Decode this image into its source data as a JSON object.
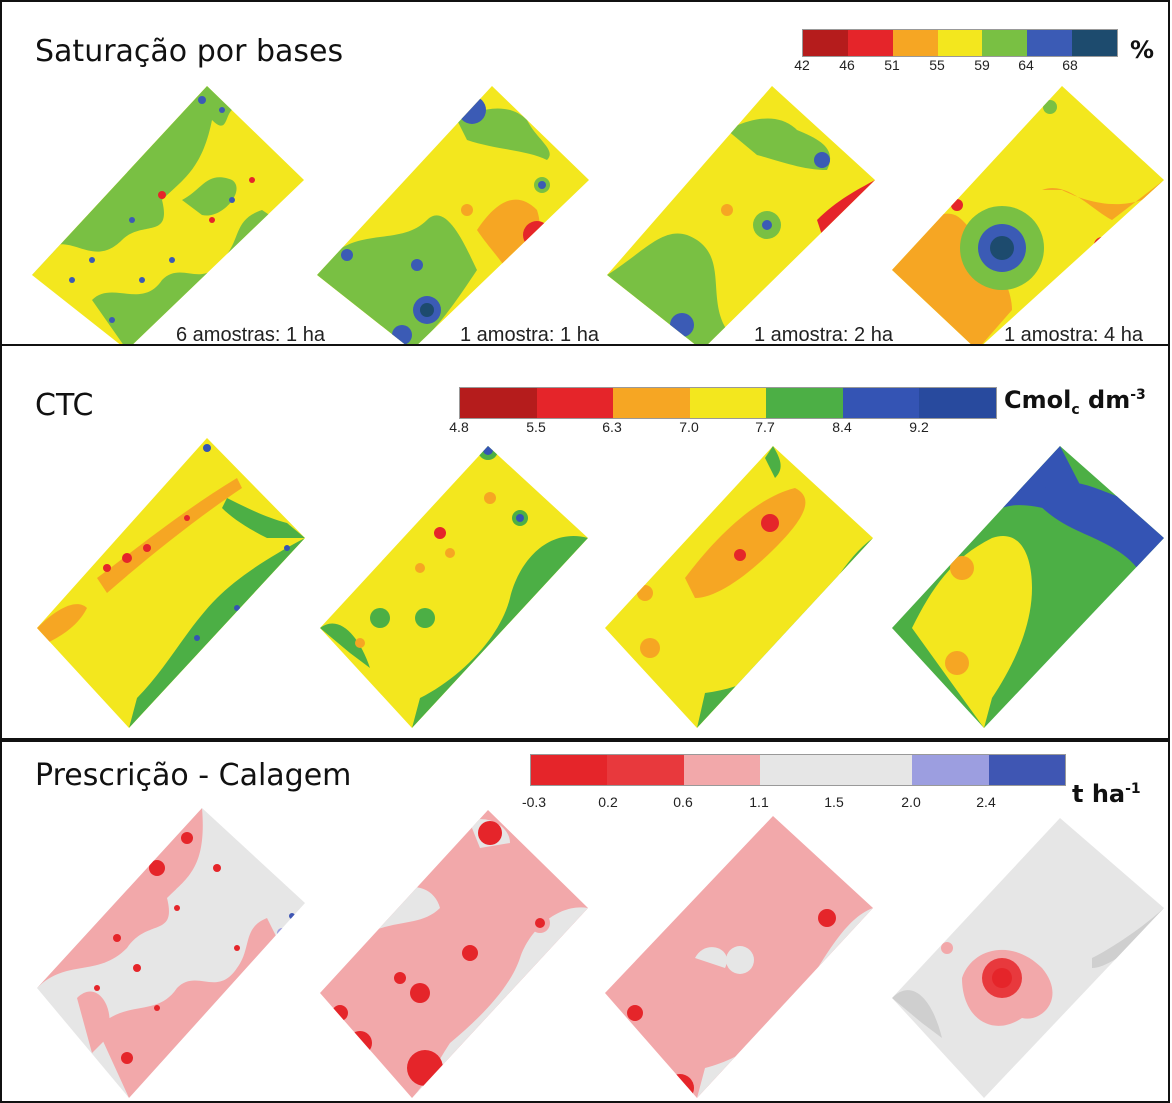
{
  "panels": [
    {
      "title": "Saturação por bases",
      "legend": {
        "colors": [
          "#b51c1c",
          "#e5252a",
          "#f6a623",
          "#f3e71e",
          "#79c043",
          "#3b5bb5",
          "#1d4b6e"
        ],
        "ticks": [
          "42",
          "46",
          "51",
          "55",
          "59",
          "64",
          "68"
        ],
        "unit": "%"
      },
      "captions": [
        "6 amostras: 1 ha",
        "1 amostra: 1 ha",
        "1 amostra: 2 ha",
        "1 amostra: 4 ha"
      ]
    },
    {
      "title": "CTC",
      "legend": {
        "colors": [
          "#b51c1c",
          "#e5252a",
          "#f6a623",
          "#f3e71e",
          "#4caf45",
          "#3454b4",
          "#284a9e"
        ],
        "ticks": [
          "4.8",
          "5.5",
          "6.3",
          "7.0",
          "7.7",
          "8.4",
          "9.2"
        ],
        "unit_base": "Cmol",
        "unit_sub": "c",
        "unit_mid": " dm",
        "unit_sup": "-3"
      }
    },
    {
      "title": "Prescrição - Calagem",
      "legend": {
        "colors": [
          "#e5252a",
          "#e8393d",
          "#f2a8aa",
          "#e6e6e6",
          "#e6e6e6",
          "#9c9ee0",
          "#3f56b3"
        ],
        "ticks": [
          "-0.3",
          "0.2",
          "0.6",
          "1.1",
          "1.5",
          "2.0",
          "2.4"
        ],
        "unit_base": "t ha",
        "unit_sup": "-1"
      }
    }
  ]
}
